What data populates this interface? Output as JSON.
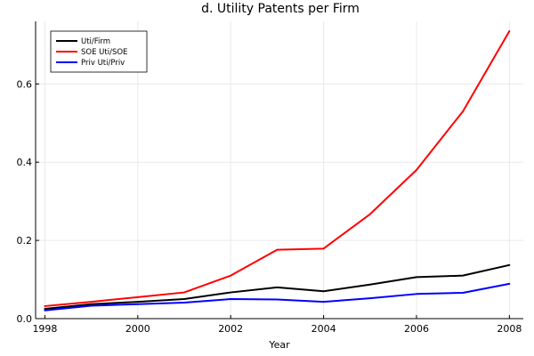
{
  "chart_data": {
    "type": "line",
    "title": "d. Utility Patents per Firm",
    "xlabel": "Year",
    "ylabel": "",
    "xlim": [
      1997.8,
      2008.3
    ],
    "ylim": [
      0,
      0.76
    ],
    "x_ticks": [
      1998,
      2000,
      2002,
      2004,
      2006,
      2008
    ],
    "x_tick_labels": [
      "1998",
      "2000",
      "2002",
      "2004",
      "2006",
      "2008"
    ],
    "y_ticks": [
      0.0,
      0.2,
      0.4,
      0.6
    ],
    "y_tick_labels": [
      "0.0",
      "0.2",
      "0.4",
      "0.6"
    ],
    "grid": true,
    "legend_position": "top-left",
    "x": [
      1998,
      1999,
      2000,
      2001,
      2002,
      2003,
      2004,
      2005,
      2006,
      2007,
      2008
    ],
    "series": [
      {
        "name": "Uti/Firm",
        "color": "#000000",
        "values": [
          0.025,
          0.037,
          0.043,
          0.05,
          0.067,
          0.08,
          0.07,
          0.087,
          0.106,
          0.11,
          0.137
        ]
      },
      {
        "name": "SOE Uti/SOE",
        "color": "#ff0000",
        "values": [
          0.032,
          0.043,
          0.055,
          0.067,
          0.11,
          0.176,
          0.179,
          0.267,
          0.38,
          0.53,
          0.735
        ]
      },
      {
        "name": "Priv Uti/Priv",
        "color": "#0000ff",
        "values": [
          0.021,
          0.033,
          0.037,
          0.041,
          0.05,
          0.049,
          0.043,
          0.052,
          0.063,
          0.066,
          0.089
        ]
      }
    ]
  }
}
